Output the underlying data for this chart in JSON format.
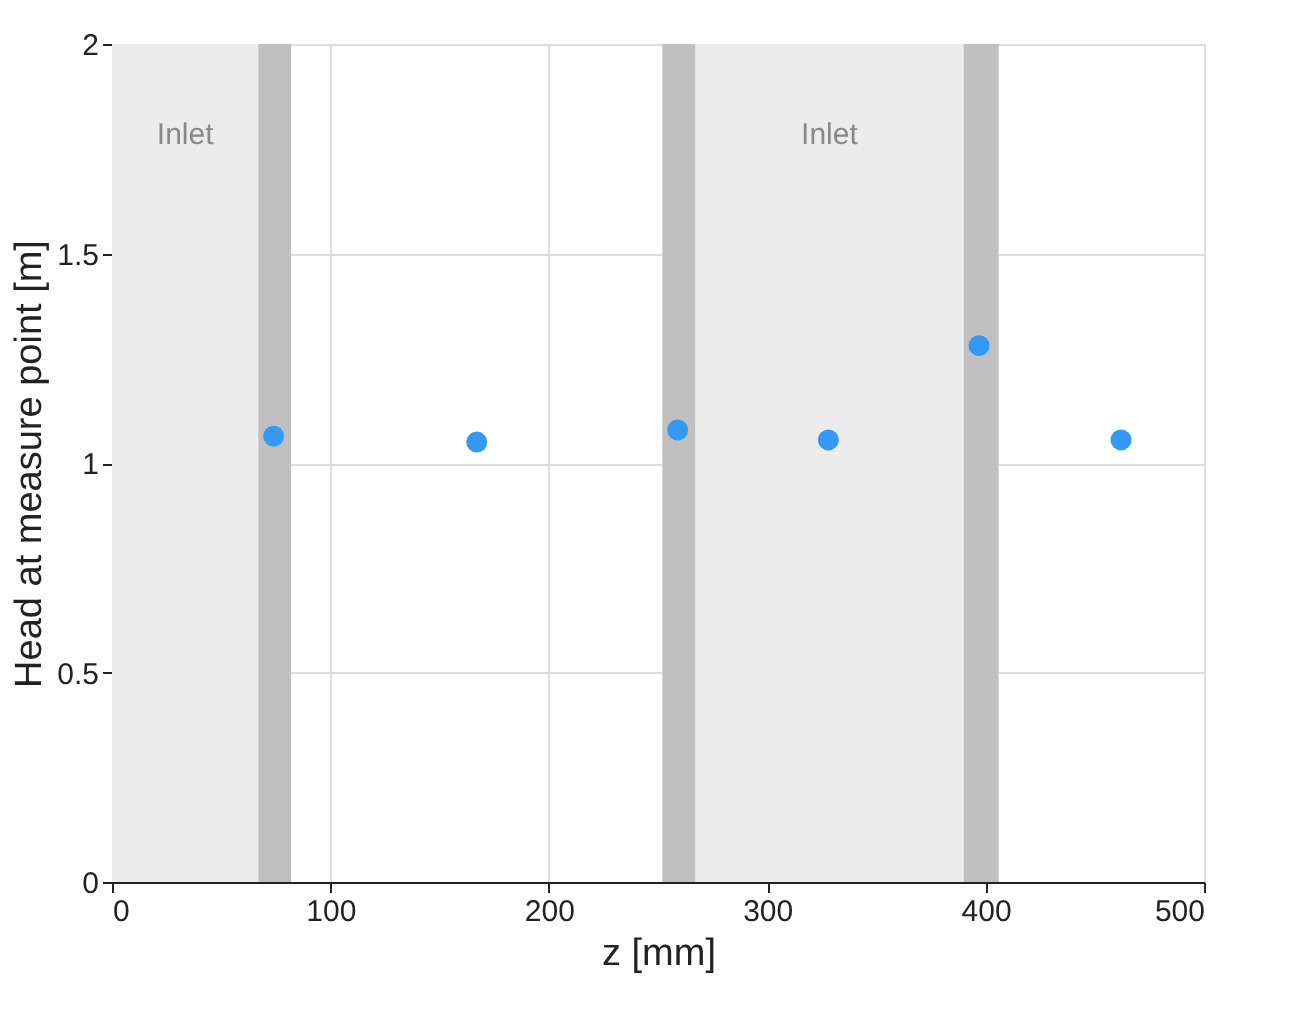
{
  "chart_data": {
    "type": "scatter",
    "xlabel": "z [mm]",
    "ylabel": "Head at measure point [m]",
    "x": [
      74,
      167,
      259,
      328,
      397,
      462
    ],
    "values": [
      1.064,
      1.05,
      1.079,
      1.055,
      1.28,
      1.055
    ],
    "color": "#3399f5",
    "marker": "circle",
    "xlim": [
      0,
      500
    ],
    "xticks": [
      0,
      100,
      200,
      300,
      400,
      500
    ],
    "ylim": [
      0,
      2
    ],
    "yticks": [
      0,
      0.5,
      1,
      1.5,
      2
    ],
    "grid": true,
    "bands": [
      {
        "axis": "x",
        "from": 0,
        "to": 67,
        "label": "Inlet",
        "color": "#ececec"
      },
      {
        "axis": "x",
        "from": 252,
        "to": 405,
        "label": "Inlet",
        "color": "#ececec"
      },
      {
        "axis": "x",
        "from": 67,
        "to": 82,
        "color": "#c0c0c0"
      },
      {
        "axis": "x",
        "from": 252,
        "to": 267,
        "color": "#c0c0c0"
      },
      {
        "axis": "x",
        "from": 390,
        "to": 406,
        "color": "#c0c0c0"
      }
    ]
  }
}
